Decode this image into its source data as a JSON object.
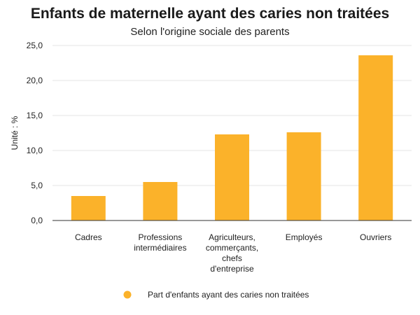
{
  "chart_data": {
    "type": "bar",
    "title": "Enfants de maternelle ayant des caries non traitées",
    "subtitle": "Selon l'origine sociale des parents",
    "ylabel": "Unité : %",
    "xlabel": "",
    "categories": [
      [
        "Cadres"
      ],
      [
        "Professions",
        "intermédiaires"
      ],
      [
        "Agriculteurs,",
        "commerçants,",
        "chefs",
        "d'entreprise"
      ],
      [
        "Employés"
      ],
      [
        "Ouvriers"
      ]
    ],
    "series": [
      {
        "name": "Part d'enfants ayant des caries non traitées",
        "color": "#fbb22a",
        "values": [
          3.5,
          5.5,
          12.3,
          12.6,
          23.6
        ]
      }
    ],
    "ylim": [
      0,
      25
    ],
    "yticks": [
      "0,0",
      "5,0",
      "10,0",
      "15,0",
      "20,0",
      "25,0"
    ],
    "grid": true,
    "legend_position": "bottom"
  }
}
